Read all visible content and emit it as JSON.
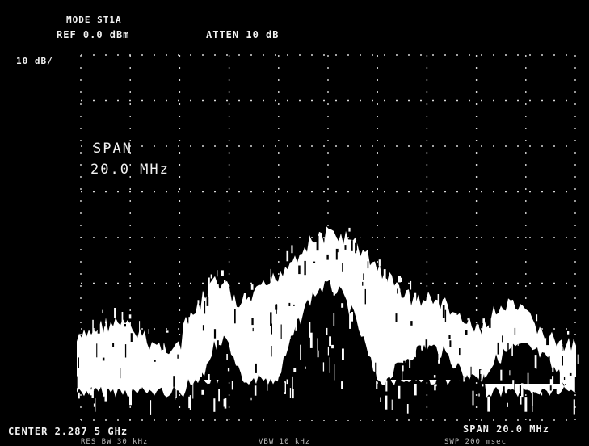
{
  "header": {
    "mode": "MODE ST1A",
    "reference": "REF  0.0 dBm",
    "attenuation": "ATTEN 10 dB",
    "scale": "10 dB/"
  },
  "overlay": {
    "span_label": "SPAN",
    "span_value": "20.0 MHz"
  },
  "footer": {
    "center": "CENTER 2.287 5 GHz",
    "span": "SPAN 20.0 MHz",
    "res_bw": "RES BW 30 kHz",
    "video_bw": "VBW 10 kHz",
    "sweep": "SWP 200 msec"
  },
  "colors": {
    "screen_background": "#000000",
    "trace": "#ffffff",
    "graticule": "#d8d8d8"
  }
}
